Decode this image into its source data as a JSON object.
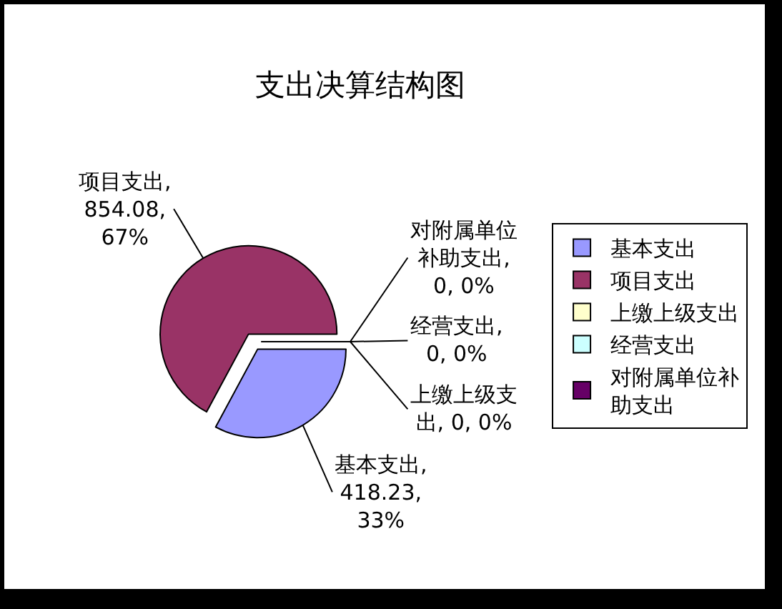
{
  "chart_data": {
    "type": "pie",
    "title": "支出决算结构图",
    "categories": [
      "基本支出",
      "项目支出",
      "上缴上级支出",
      "经营支出",
      "对附属单位补助支出"
    ],
    "values": [
      418.23,
      854.08,
      0,
      0,
      0
    ],
    "colors": [
      "#9999ff",
      "#993366",
      "#ffffcc",
      "#ccffff",
      "#660066"
    ],
    "value_labels": [
      "基本支出, 418.23, 33%",
      "项目支出, 854.08, 67%",
      "上缴上级支出, 0, 0%",
      "经营支出, 0, 0%",
      "对附属单位补助支出, 0, 0%"
    ],
    "legend": "right"
  }
}
